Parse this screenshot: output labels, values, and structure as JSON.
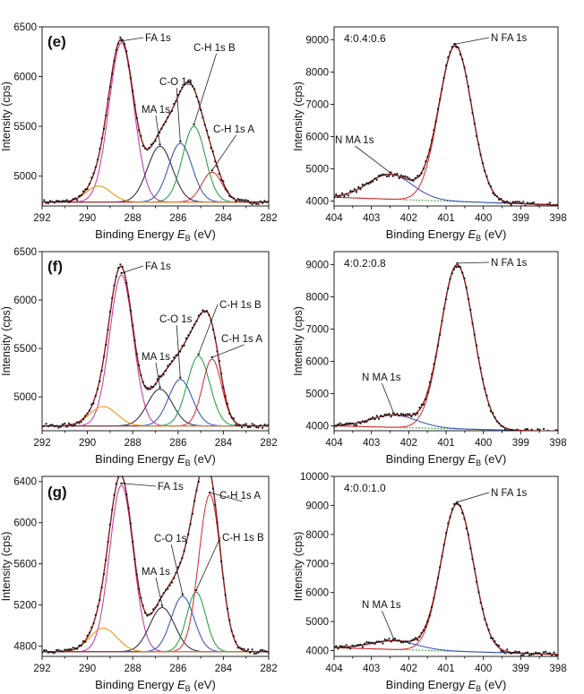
{
  "chart_data": [
    {
      "type": "line",
      "panel": "e",
      "xlabel": "Binding Energy",
      "xlabel_sym": "E",
      "xlabel_sub": "B",
      "xlabel_unit": "(eV)",
      "ylabel": "Intensity (cps)",
      "xlim": [
        292,
        282
      ],
      "xticks": [
        "292",
        "290",
        "288",
        "286",
        "284",
        "282"
      ],
      "ylim": [
        4700,
        6500
      ],
      "yticks": [
        "6500",
        "6000",
        "5500",
        "5000"
      ],
      "background": 4740,
      "series": [
        {
          "name": "FA 1s",
          "center": 288.5,
          "height": 1600,
          "sigma": 0.55,
          "color": "#c8309a"
        },
        {
          "name": "MA 1s",
          "center": 286.8,
          "height": 560,
          "sigma": 0.55,
          "color": "#1c1c3a"
        },
        {
          "name": "C-O 1s",
          "center": 285.9,
          "height": 590,
          "sigma": 0.52,
          "color": "#2f48b8"
        },
        {
          "name": "C-H 1s B",
          "center": 285.3,
          "height": 760,
          "sigma": 0.5,
          "color": "#1a9a3c"
        },
        {
          "name": "C-H 1s A",
          "center": 284.5,
          "height": 300,
          "sigma": 0.45,
          "color": "#d8232a"
        },
        {
          "name": "",
          "center": 289.5,
          "height": 160,
          "sigma": 0.55,
          "color": "#f08c00"
        }
      ],
      "labels": [
        "FA 1s",
        "MA 1s",
        "C-O 1s",
        "C-H 1s B",
        "C-H 1s A"
      ]
    },
    {
      "type": "line",
      "panel_text": "4:0.4:0.6",
      "xlabel": "Binding Energy",
      "xlabel_sym": "E",
      "xlabel_sub": "B",
      "xlabel_unit": "(eV)",
      "ylabel": "Intensity (cps)",
      "xlim": [
        404,
        398
      ],
      "xticks": [
        "404",
        "403",
        "402",
        "401",
        "400",
        "399",
        "398"
      ],
      "ylim": [
        3850,
        9400
      ],
      "yticks": [
        "9000",
        "8000",
        "7000",
        "6000",
        "5000",
        "4000"
      ],
      "background": [
        4120,
        3880
      ],
      "series": [
        {
          "name": "N FA 1s",
          "center": 400.75,
          "height": 4820,
          "sigma": 0.44,
          "color": "#d8232a"
        },
        {
          "name": "N MA 1s",
          "center": 402.5,
          "height": 770,
          "sigma": 0.6,
          "color": "#2f48b8"
        }
      ],
      "labels": [
        "N FA 1s",
        "N MA 1s"
      ]
    },
    {
      "type": "line",
      "panel": "f",
      "xlabel": "Binding Energy",
      "xlabel_sym": "E",
      "xlabel_sub": "B",
      "xlabel_unit": "(eV)",
      "ylabel": "Intensity (cps)",
      "xlim": [
        292,
        282
      ],
      "xticks": [
        "292",
        "290",
        "288",
        "286",
        "284",
        "282"
      ],
      "ylim": [
        4650,
        6500
      ],
      "yticks": [
        "6500",
        "6000",
        "5500",
        "5000"
      ],
      "background": 4700,
      "series": [
        {
          "name": "FA 1s",
          "center": 288.5,
          "height": 1560,
          "sigma": 0.52,
          "color": "#c8309a"
        },
        {
          "name": "MA 1s",
          "center": 286.8,
          "height": 380,
          "sigma": 0.55,
          "color": "#1c1c3a"
        },
        {
          "name": "C-O 1s",
          "center": 285.9,
          "height": 480,
          "sigma": 0.52,
          "color": "#2f48b8"
        },
        {
          "name": "C-H 1s B",
          "center": 285.1,
          "height": 720,
          "sigma": 0.5,
          "color": "#1a9a3c"
        },
        {
          "name": "C-H 1s A",
          "center": 284.5,
          "height": 690,
          "sigma": 0.42,
          "color": "#d8232a"
        },
        {
          "name": "",
          "center": 289.3,
          "height": 200,
          "sigma": 0.6,
          "color": "#f08c00"
        }
      ],
      "labels": [
        "FA 1s",
        "MA 1s",
        "C-O 1s",
        "C-H 1s B",
        "C-H 1s A"
      ]
    },
    {
      "type": "line",
      "panel_text": "4:0.2:0.8",
      "xlabel": "Binding Energy",
      "xlabel_sym": "E",
      "xlabel_sub": "B",
      "xlabel_unit": "(eV)",
      "ylabel": "Intensity (cps)",
      "xlim": [
        404,
        398
      ],
      "xticks": [
        "404",
        "403",
        "402",
        "401",
        "400",
        "399",
        "398"
      ],
      "ylim": [
        3850,
        9400
      ],
      "yticks": [
        "9000",
        "8000",
        "7000",
        "6000",
        "5000",
        "4000"
      ],
      "background": [
        4000,
        3830
      ],
      "series": [
        {
          "name": "N FA 1s",
          "center": 400.7,
          "height": 5080,
          "sigma": 0.44,
          "color": "#d8232a"
        },
        {
          "name": "N MA 1s",
          "center": 402.4,
          "height": 380,
          "sigma": 0.62,
          "color": "#2f48b8"
        }
      ],
      "labels": [
        "N FA 1s",
        "N MA 1s"
      ]
    },
    {
      "type": "line",
      "panel": "g",
      "xlabel": "Binding Energy",
      "xlabel_sym": "E",
      "xlabel_sub": "B",
      "xlabel_unit": "(eV)",
      "ylabel": "Intensity (cps)",
      "xlim": [
        292,
        282
      ],
      "xticks": [
        "292",
        "290",
        "288",
        "286",
        "284",
        "282"
      ],
      "ylim": [
        4700,
        6450
      ],
      "yticks": [
        "6400",
        "6000",
        "5600",
        "5200",
        "4800"
      ],
      "background": 4745,
      "series": [
        {
          "name": "FA 1s",
          "center": 288.5,
          "height": 1620,
          "sigma": 0.52,
          "color": "#c8309a"
        },
        {
          "name": "MA 1s",
          "center": 286.7,
          "height": 430,
          "sigma": 0.55,
          "color": "#1c1c3a"
        },
        {
          "name": "C-O 1s",
          "center": 285.8,
          "height": 540,
          "sigma": 0.5,
          "color": "#2f48b8"
        },
        {
          "name": "C-H 1s B",
          "center": 285.2,
          "height": 580,
          "sigma": 0.42,
          "color": "#1a9a3c"
        },
        {
          "name": "C-H 1s A",
          "center": 284.6,
          "height": 1530,
          "sigma": 0.48,
          "color": "#d8232a"
        },
        {
          "name": "",
          "center": 289.3,
          "height": 230,
          "sigma": 0.6,
          "color": "#f08c00"
        }
      ],
      "labels": [
        "FA 1s",
        "MA 1s",
        "C-O 1s",
        "C-H 1s B",
        "C-H 1s A"
      ]
    },
    {
      "type": "line",
      "panel_text": "4:0.0:1.0",
      "xlabel": "Binding Energy",
      "xlabel_sym": "E",
      "xlabel_sub": "B",
      "xlabel_unit": "(eV)",
      "ylabel": "Intensity (cps)",
      "xlim": [
        404,
        398
      ],
      "xticks": [
        "404",
        "403",
        "402",
        "401",
        "400",
        "399",
        "398"
      ],
      "ylim": [
        3800,
        10000
      ],
      "yticks": [
        "10000",
        "9000",
        "8000",
        "7000",
        "6000",
        "5000",
        "4000"
      ],
      "background": [
        4100,
        3870
      ],
      "series": [
        {
          "name": "N FA 1s",
          "center": 400.7,
          "height": 5080,
          "sigma": 0.43,
          "color": "#d8232a"
        },
        {
          "name": "N MA 1s",
          "center": 402.4,
          "height": 300,
          "sigma": 0.62,
          "color": "#2f48b8"
        }
      ],
      "labels": [
        "N FA 1s",
        "N MA 1s"
      ]
    }
  ],
  "colors": {
    "envelope": "#8b1a1a",
    "points": "#111111",
    "background_line": "#3a3aa8",
    "background_dotted": "#2a8a2a"
  }
}
